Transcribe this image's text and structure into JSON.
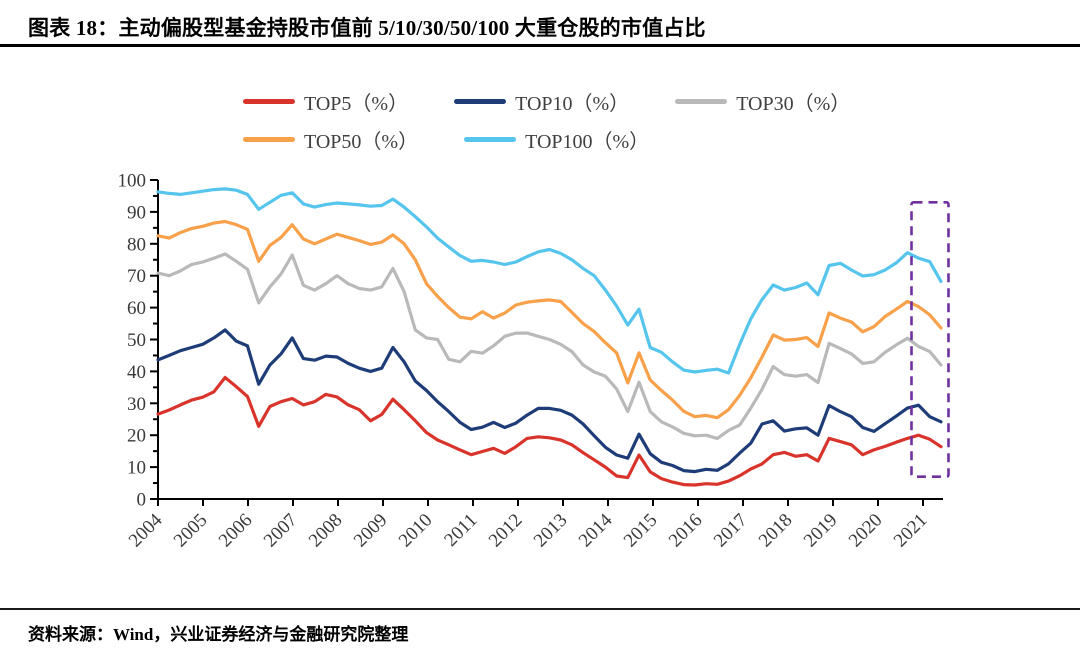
{
  "figure": {
    "title": "图表 18：主动偏股型基金持股市值前 5/10/30/50/100 大重仓股的市值占比",
    "source_note": "资料来源：Wind，兴业证券经济与金融研究院整理"
  },
  "chart_data": {
    "type": "line",
    "title": "",
    "xlabel": "",
    "ylabel": "",
    "x_frequency": "quarterly",
    "x_range": [
      "2004Q1",
      "2021Q3"
    ],
    "x_tick_labels": [
      "2004",
      "2005",
      "2006",
      "2007",
      "2008",
      "2009",
      "2010",
      "2011",
      "2012",
      "2013",
      "2014",
      "2015",
      "2016",
      "2017",
      "2018",
      "2019",
      "2020",
      "2021"
    ],
    "ylim": [
      0,
      100
    ],
    "ytick_step": 10,
    "ytick_minor_step": 5,
    "grid": false,
    "legend_position": "top",
    "axis_color": "#000000",
    "tick_label_color": "#3a3a3a",
    "series": [
      {
        "name": "TOP5（%）",
        "color": "#d9342b",
        "values": [
          26.6,
          27.9,
          29.5,
          31.0,
          31.9,
          33.6,
          38.1,
          35.2,
          32.1,
          22.8,
          29.0,
          30.5,
          31.5,
          29.5,
          30.5,
          32.8,
          32.0,
          29.5,
          28.0,
          24.5,
          26.5,
          31.3,
          28.0,
          24.5,
          20.8,
          18.5,
          17.0,
          15.4,
          13.9,
          14.9,
          15.9,
          14.3,
          16.4,
          19.0,
          19.5,
          19.2,
          18.5,
          17.0,
          14.5,
          12.3,
          10.0,
          7.2,
          6.7,
          13.8,
          8.5,
          6.4,
          5.3,
          4.5,
          4.4,
          4.8,
          4.6,
          5.6,
          7.3,
          9.4,
          11.0,
          13.9,
          14.6,
          13.4,
          13.9,
          11.9,
          19.0,
          18.0,
          17.0,
          13.9,
          15.4,
          16.5,
          17.8,
          19.0,
          20.0,
          18.7,
          16.4
        ]
      },
      {
        "name": "TOP10（%）",
        "color": "#1e3c78",
        "values": [
          43.6,
          45.0,
          46.5,
          47.5,
          48.5,
          50.5,
          53.0,
          49.5,
          48.0,
          36.0,
          42.0,
          45.5,
          50.5,
          44.0,
          43.5,
          44.8,
          44.5,
          42.5,
          41.0,
          40.0,
          41.0,
          47.5,
          43.0,
          37.0,
          34.0,
          30.5,
          27.4,
          24.0,
          21.8,
          22.5,
          24.0,
          22.4,
          23.8,
          26.3,
          28.4,
          28.4,
          27.8,
          26.3,
          23.5,
          19.8,
          16.2,
          13.8,
          12.8,
          20.3,
          14.2,
          11.5,
          10.5,
          8.9,
          8.6,
          9.3,
          9.0,
          11.0,
          14.4,
          17.5,
          23.5,
          24.5,
          21.3,
          22.0,
          22.3,
          20.0,
          29.3,
          27.4,
          25.8,
          22.4,
          21.2,
          23.6,
          26.0,
          28.5,
          29.4,
          25.8,
          24.2
        ]
      },
      {
        "name": "TOP30（%）",
        "color": "#b9b9b9",
        "values": [
          70.8,
          70.0,
          71.5,
          73.5,
          74.3,
          75.5,
          76.8,
          74.5,
          72.0,
          61.5,
          66.5,
          70.5,
          76.5,
          67.0,
          65.5,
          67.5,
          70.0,
          67.5,
          66.0,
          65.5,
          66.5,
          72.3,
          65.0,
          53.0,
          50.5,
          50.0,
          43.8,
          43.0,
          46.3,
          45.7,
          48.0,
          51.0,
          52.0,
          52.0,
          51.0,
          50.0,
          48.5,
          46.2,
          42.0,
          39.8,
          38.5,
          34.5,
          27.4,
          36.6,
          27.4,
          24.2,
          22.6,
          20.6,
          19.8,
          20.0,
          19.0,
          21.5,
          23.2,
          28.5,
          34.4,
          41.5,
          39.0,
          38.5,
          39.0,
          36.5,
          48.8,
          47.2,
          45.5,
          42.5,
          43.0,
          46.0,
          48.3,
          50.4,
          47.8,
          46.2,
          42.0
        ]
      },
      {
        "name": "TOP50（%）",
        "color": "#f9a04a",
        "values": [
          82.5,
          81.8,
          83.5,
          84.8,
          85.5,
          86.5,
          87.0,
          86.0,
          84.5,
          74.5,
          79.5,
          82.0,
          86.0,
          81.5,
          80.0,
          81.5,
          83.0,
          82.0,
          81.0,
          79.8,
          80.5,
          82.8,
          80.0,
          75.0,
          67.5,
          63.5,
          60.0,
          57.0,
          56.5,
          58.7,
          56.7,
          58.3,
          60.8,
          61.7,
          62.1,
          62.4,
          61.9,
          58.5,
          55.0,
          52.5,
          49.0,
          45.8,
          36.4,
          45.8,
          37.3,
          34.0,
          31.0,
          27.5,
          25.8,
          26.2,
          25.5,
          28.0,
          32.5,
          38.0,
          44.5,
          51.4,
          49.8,
          50.0,
          50.6,
          47.8,
          58.3,
          56.7,
          55.5,
          52.4,
          54.0,
          57.2,
          59.5,
          61.9,
          60.3,
          57.7,
          53.6
        ]
      },
      {
        "name": "TOP100（%）",
        "color": "#56c5ee",
        "values": [
          96.3,
          95.8,
          95.5,
          96.0,
          96.5,
          97.0,
          97.2,
          96.8,
          95.5,
          90.8,
          93.0,
          95.2,
          96.0,
          92.5,
          91.5,
          92.3,
          92.8,
          92.5,
          92.2,
          91.8,
          92.0,
          94.0,
          91.5,
          88.5,
          85.3,
          81.8,
          79.0,
          76.3,
          74.5,
          74.8,
          74.3,
          73.5,
          74.3,
          76.0,
          77.5,
          78.2,
          77.0,
          75.0,
          72.3,
          70.0,
          65.5,
          60.5,
          54.5,
          59.5,
          47.5,
          46.0,
          43.0,
          40.4,
          39.8,
          40.3,
          40.7,
          39.5,
          48.5,
          56.5,
          62.5,
          67.1,
          65.5,
          66.3,
          67.7,
          64.0,
          73.2,
          73.9,
          71.8,
          69.9,
          70.3,
          71.8,
          74.0,
          77.2,
          75.5,
          74.4,
          68.2
        ]
      }
    ],
    "highlight_box": {
      "label": "2021",
      "color": "#7030a0",
      "x_from": "2020Q4",
      "x_to": "2021Q3",
      "y_from": 7,
      "y_to": 93
    }
  }
}
